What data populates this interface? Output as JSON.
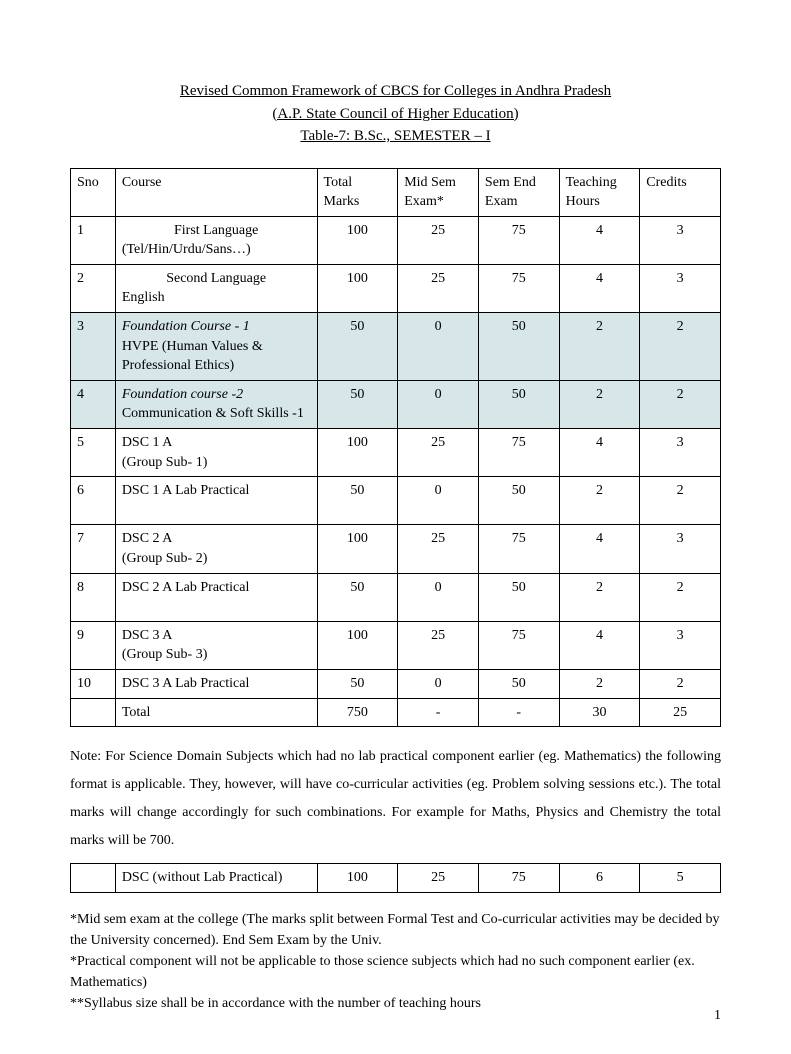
{
  "title": {
    "line1": "Revised Common Framework of CBCS for Colleges in Andhra Pradesh",
    "line2": "(A.P. State Council of Higher Education)",
    "line3": "Table-7: B.Sc., SEMESTER – I"
  },
  "main_table": {
    "headers": {
      "sno": "Sno",
      "course": "Course",
      "total_marks": "Total Marks",
      "mid_sem": "Mid Sem Exam*",
      "sem_end": "Sem End Exam",
      "teaching": "Teaching Hours",
      "credits": "Credits"
    },
    "rows": [
      {
        "sno": "1",
        "course_style": "top",
        "course_l1": "First Language",
        "course_l2": "(Tel/Hin/Urdu/Sans…)",
        "total": "100",
        "mid": "25",
        "end": "75",
        "hrs": "4",
        "credits": "3",
        "hl": false,
        "it1": false
      },
      {
        "sno": "2",
        "course_style": "top",
        "course_l1": "Second Language",
        "course_l2": "English",
        "total": "100",
        "mid": "25",
        "end": "75",
        "hrs": "4",
        "credits": "3",
        "hl": false,
        "it1": false
      },
      {
        "sno": "3",
        "course_style": "left",
        "course_l1": "Foundation Course - 1",
        "course_l2": "HVPE (Human Values & Professional Ethics)",
        "total": "50",
        "mid": "0",
        "end": "50",
        "hrs": "2",
        "credits": "2",
        "hl": true,
        "it1": true
      },
      {
        "sno": "4",
        "course_style": "left",
        "course_l1": "Foundation course -2",
        "course_l2": "Communication & Soft Skills -1",
        "total": "50",
        "mid": "0",
        "end": "50",
        "hrs": "2",
        "credits": "2",
        "hl": true,
        "it1": true
      },
      {
        "sno": "5",
        "course_style": "left",
        "course_l1": "DSC 1 A",
        "course_l2": "(Group Sub- 1)",
        "total": "100",
        "mid": "25",
        "end": "75",
        "hrs": "4",
        "credits": "3",
        "hl": false,
        "it1": false
      },
      {
        "sno": "6",
        "course_style": "left",
        "course_l1": "DSC 1 A Lab Practical",
        "course_l2": "",
        "total": "50",
        "mid": "0",
        "end": "50",
        "hrs": "2",
        "credits": "2",
        "hl": false,
        "it1": false,
        "pad": true
      },
      {
        "sno": "7",
        "course_style": "left",
        "course_l1": "DSC 2 A",
        "course_l2": "(Group Sub- 2)",
        "total": "100",
        "mid": "25",
        "end": "75",
        "hrs": "4",
        "credits": "3",
        "hl": false,
        "it1": false
      },
      {
        "sno": "8",
        "course_style": "left",
        "course_l1": "DSC 2 A Lab Practical",
        "course_l2": "",
        "total": "50",
        "mid": "0",
        "end": "50",
        "hrs": "2",
        "credits": "2",
        "hl": false,
        "it1": false,
        "pad": true
      },
      {
        "sno": "9",
        "course_style": "left",
        "course_l1": "DSC 3 A",
        "course_l2": "(Group Sub- 3)",
        "total": "100",
        "mid": "25",
        "end": "75",
        "hrs": "4",
        "credits": "3",
        "hl": false,
        "it1": false
      },
      {
        "sno": "10",
        "course_style": "left",
        "course_l1": "DSC 3 A Lab Practical",
        "course_l2": "",
        "total": "50",
        "mid": "0",
        "end": "50",
        "hrs": "2",
        "credits": "2",
        "hl": false,
        "it1": false
      }
    ],
    "total_row": {
      "sno": "",
      "course": "Total",
      "total": "750",
      "mid": "-",
      "end": "-",
      "hrs": "30",
      "credits": "25"
    }
  },
  "note": "Note: For Science Domain Subjects which had no lab practical component earlier (eg. Mathematics) the following format is applicable. They, however, will have co-curricular activities (eg. Problem solving sessions etc.). The total marks will change accordingly for such combinations. For example for Maths, Physics and Chemistry the total marks will be 700.",
  "dsc_row": {
    "sno": "",
    "course": "DSC (without Lab Practical)",
    "total": "100",
    "mid": "25",
    "end": "75",
    "hrs": "6",
    "credits": "5"
  },
  "footnotes": {
    "f1": " *Mid sem exam at the college (The marks split between Formal Test and Co-curricular activities may be decided by the University concerned). End Sem Exam by the Univ.",
    "f2": "*Practical component will not be applicable to those science subjects which had no such component earlier (ex. Mathematics)",
    "f3": "**Syllabus size shall be in accordance with the number of teaching hours"
  },
  "page_number": "1",
  "colors": {
    "highlight_bg": "#d6e6e9",
    "text": "#000000",
    "border": "#000000",
    "background": "#ffffff"
  },
  "typography": {
    "title_fontsize": 15,
    "body_fontsize": 14,
    "font_family": "Times New Roman"
  }
}
